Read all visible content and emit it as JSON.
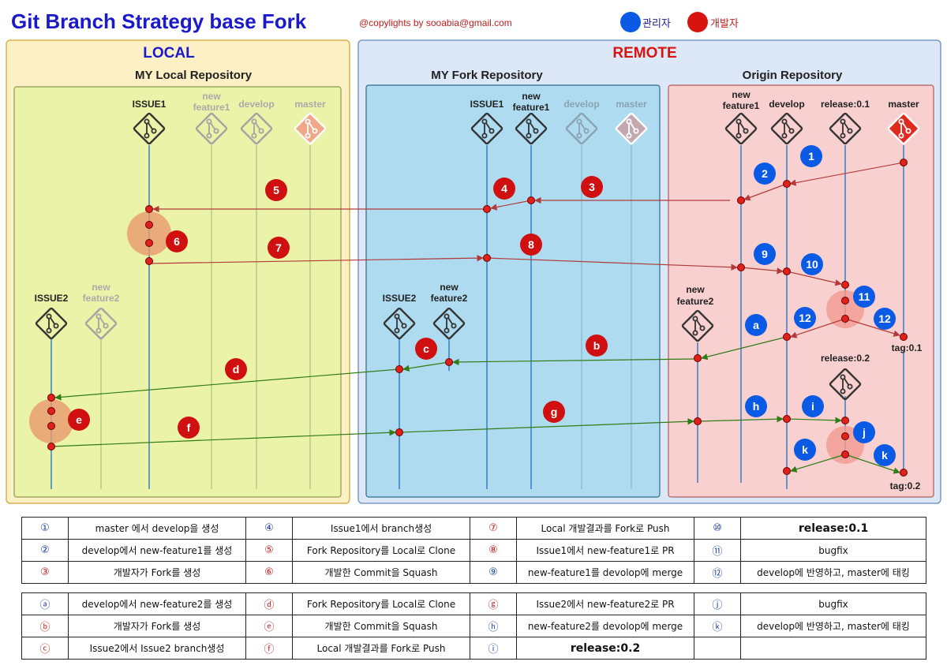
{
  "header": {
    "title": "Git Branch Strategy base Fork",
    "copyright": "@copylights by sooabia@gmail.com",
    "legend_admin": "관리자",
    "legend_dev": "개발자",
    "colors": {
      "admin": "#0a5ae6",
      "dev": "#d9140f",
      "title": "#1a1acc"
    }
  },
  "sections": {
    "local": "LOCAL",
    "remote": "REMOTE",
    "my_local": "MY Local Repository",
    "my_fork": "MY Fork Repository",
    "origin": "Origin Repository"
  },
  "branches": {
    "issue1": "ISSUE1",
    "new": "new",
    "feature1": "feature1",
    "feature2": "feature2",
    "develop": "develop",
    "master": "master",
    "issue2": "ISSUE2",
    "release01": "release:0.1",
    "release02": "release:0.2",
    "tag01": "tag:0.1",
    "tag02": "tag:0.2"
  },
  "markers": {
    "n1": "1",
    "n2": "2",
    "n3": "3",
    "n4": "4",
    "n5": "5",
    "n6": "6",
    "n7": "7",
    "n8": "8",
    "n9": "9",
    "n10": "10",
    "n11": "11",
    "n12": "12",
    "la": "a",
    "lb": "b",
    "lc": "c",
    "ld": "d",
    "le": "e",
    "lf": "f",
    "lg": "g",
    "lh": "h",
    "li": "i",
    "lj": "j",
    "lk": "k"
  },
  "table1": [
    [
      "①",
      "master 에서 develop을 생성",
      "④",
      "Issue1에서 branch생성",
      "⑦",
      "Local 개발결과를 Fork로 Push",
      "⑩",
      "release:0.1"
    ],
    [
      "②",
      "develop에서 new-feature1를 생성",
      "⑤",
      "Fork Repository를 Local로 Clone",
      "⑧",
      "Issue1에서 new-feature1로 PR",
      "⑪",
      "bugfix"
    ],
    [
      "③",
      "개발자가 Fork를 생성",
      "⑥",
      "개발한 Commit을 Squash",
      "⑨",
      "new-feature1를 devolop에 merge",
      "⑫",
      "develop에 반영하고, master에 태킹"
    ]
  ],
  "table2": [
    [
      "ⓐ",
      "develop에서 new-feature2를 생성",
      "ⓓ",
      "Fork Repository를 Local로 Clone",
      "ⓖ",
      "Issue2에서 new-feature2로 PR",
      "ⓙ",
      "bugfix"
    ],
    [
      "ⓑ",
      "개발자가 Fork를 생성",
      "ⓔ",
      "개발한 Commit을 Squash",
      "ⓗ",
      "new-feature2를 devolop에 merge",
      "ⓚ",
      "develop에 반영하고, master에 태킹"
    ],
    [
      "ⓒ",
      "Issue2에서 Issue2 branch생성",
      "ⓕ",
      "Local 개발결과를 Fork로 Push",
      "ⓘ",
      "release:0.2",
      "",
      ""
    ]
  ]
}
